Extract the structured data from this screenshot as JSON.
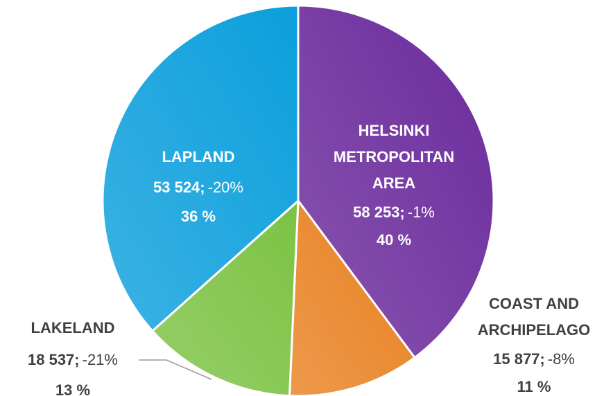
{
  "chart_data": {
    "type": "pie",
    "categories": [
      [
        "HELSINKI",
        "METROPOLITAN",
        "AREA"
      ],
      [
        "COAST AND",
        "ARCHIPELAGO"
      ],
      [
        "LAKELAND"
      ],
      [
        "LAPLAND"
      ]
    ],
    "values": [
      58253,
      15877,
      18537,
      53524
    ],
    "value_labels": [
      "58 253;",
      "15 877;",
      "18 537;",
      "53 524;"
    ],
    "changes": [
      -1,
      -8,
      -21,
      -20
    ],
    "change_labels": [
      "-1%",
      "-8%",
      "-21%",
      "-20%"
    ],
    "percents": [
      40,
      11,
      13,
      36
    ],
    "percent_labels": [
      "40 %",
      "11 %",
      "13 %",
      "36 %"
    ],
    "colors": [
      "#6a2a9c",
      "#e8801f",
      "#7cc243",
      "#0b9fdc"
    ]
  }
}
